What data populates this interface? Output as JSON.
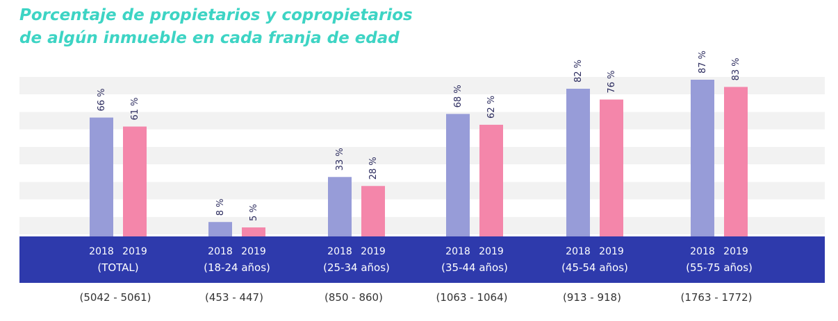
{
  "title_lines": [
    "Porcentaje de propietarios y copropietarios",
    "de algún inmueble en cada franja de edad"
  ],
  "colors": {
    "title": "#3dd4c4",
    "series_2018": "#979cd8",
    "series_2019": "#f486aa",
    "baseline_band": "#2e3aac",
    "grid_band": "#f2f2f2"
  },
  "chart_data": {
    "type": "bar",
    "title": "Porcentaje de propietarios y copropietarios de algún inmueble en cada franja de edad",
    "categories": [
      "(TOTAL)",
      "(18-24 años)",
      "(25-34 años)",
      "(35-44 años)",
      "(45-54 años)",
      "(55-75 años)"
    ],
    "sample_sizes": [
      "(5042 - 5061)",
      "(453 - 447)",
      "(850 - 860)",
      "(1063 - 1064)",
      "(913 - 918)",
      "(1763 - 1772)"
    ],
    "series": [
      {
        "name": "2018",
        "values": [
          66,
          8,
          33,
          68,
          82,
          87
        ],
        "labels": [
          "66 %",
          "8 %",
          "33 %",
          "68 %",
          "82 %",
          "87 %"
        ],
        "color": "#979cd8"
      },
      {
        "name": "2019",
        "values": [
          61,
          5,
          28,
          62,
          76,
          83
        ],
        "labels": [
          "61 %",
          "5 %",
          "28 %",
          "62 %",
          "76 %",
          "83 %"
        ],
        "color": "#f486aa"
      }
    ],
    "ylim": [
      0,
      100
    ],
    "xlabel": "",
    "ylabel": "",
    "legend": "none",
    "grid": "horizontal bands"
  }
}
